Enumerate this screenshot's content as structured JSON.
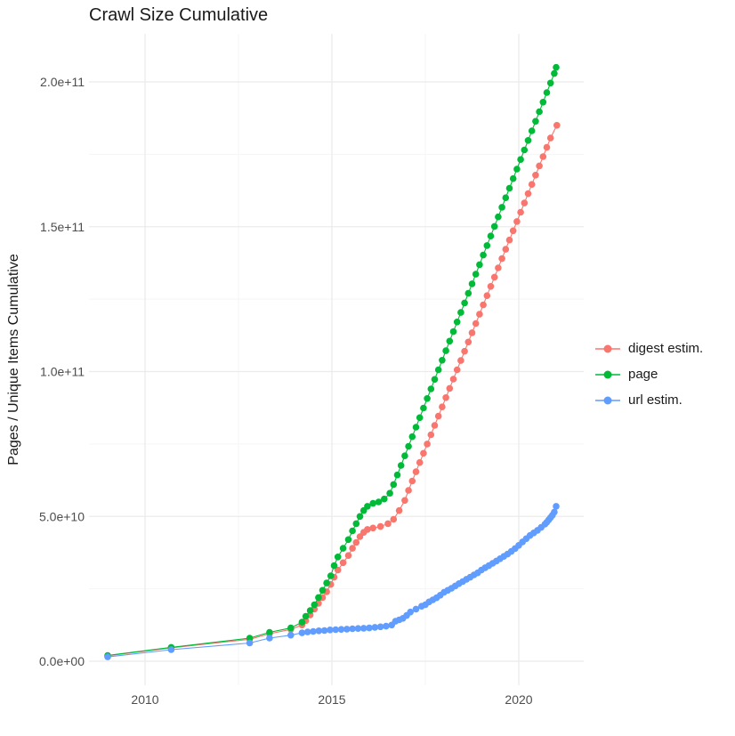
{
  "title": "Crawl Size Cumulative",
  "axes": {
    "y_title": "Pages / Unique Items Cumulative",
    "x_title": ""
  },
  "colors": {
    "background": "#FFFFFF",
    "grid_major": "#EBEBEB",
    "grid_minor": "#F5F5F5",
    "tick_text": "#4D4D4D",
    "title_text": "#1A1A1A"
  },
  "chart_data": {
    "type": "line",
    "marker": "circle",
    "title": "Crawl Size Cumulative",
    "xlabel": "",
    "ylabel": "Pages / Unique Items Cumulative",
    "xlim": [
      2008.5,
      2021.7
    ],
    "ylim": [
      0,
      215000000000
    ],
    "grid": true,
    "legend_position": "right",
    "value_unit_note": "point values are in billions (1e9) of pages/items",
    "x_major_ticks": [
      {
        "value": 2010,
        "label": "2010"
      },
      {
        "value": 2015,
        "label": "2015"
      },
      {
        "value": 2020,
        "label": "2020"
      }
    ],
    "y_major_ticks": [
      {
        "value": 0,
        "label": "0.0e+00"
      },
      {
        "value": 50,
        "label": "5.0e+10"
      },
      {
        "value": 100,
        "label": "1.0e+11"
      },
      {
        "value": 150,
        "label": "1.5e+11"
      },
      {
        "value": 200,
        "label": "2.0e+11"
      }
    ],
    "x_minor_gridlines": [
      2012.5,
      2017.5
    ],
    "y_minor_gridlines": [
      25,
      75,
      125,
      175
    ],
    "series": [
      {
        "id": "digest_estim",
        "name": "digest estim.",
        "color": "#F8766D",
        "points": [
          [
            2009.0,
            1.9
          ],
          [
            2010.7,
            4.6
          ],
          [
            2012.8,
            7.6
          ],
          [
            2013.33,
            9.5
          ],
          [
            2013.9,
            11.0
          ],
          [
            2014.2,
            12.5
          ],
          [
            2014.3,
            14.0
          ],
          [
            2014.42,
            16.0
          ],
          [
            2014.53,
            18.0
          ],
          [
            2014.64,
            20.0
          ],
          [
            2014.75,
            22.0
          ],
          [
            2014.86,
            24.0
          ],
          [
            2014.97,
            26.5
          ],
          [
            2015.06,
            29.0
          ],
          [
            2015.16,
            31.5
          ],
          [
            2015.3,
            34.0
          ],
          [
            2015.44,
            36.5
          ],
          [
            2015.55,
            39.0
          ],
          [
            2015.65,
            41.0
          ],
          [
            2015.75,
            43.0
          ],
          [
            2015.85,
            44.5
          ],
          [
            2015.95,
            45.5
          ],
          [
            2016.1,
            46.0
          ],
          [
            2016.3,
            46.5
          ],
          [
            2016.5,
            47.5
          ],
          [
            2016.65,
            49.0
          ],
          [
            2016.8,
            52.0
          ],
          [
            2016.95,
            55.5
          ],
          [
            2017.05,
            59.0
          ],
          [
            2017.15,
            62.2
          ],
          [
            2017.25,
            65.4
          ],
          [
            2017.35,
            68.6
          ],
          [
            2017.45,
            71.8
          ],
          [
            2017.55,
            75.0
          ],
          [
            2017.65,
            78.2
          ],
          [
            2017.75,
            81.4
          ],
          [
            2017.85,
            84.6
          ],
          [
            2017.95,
            87.8
          ],
          [
            2018.05,
            91.0
          ],
          [
            2018.15,
            94.2
          ],
          [
            2018.25,
            97.4
          ],
          [
            2018.35,
            100.6
          ],
          [
            2018.45,
            103.8
          ],
          [
            2018.55,
            107.0
          ],
          [
            2018.65,
            110.2
          ],
          [
            2018.75,
            113.4
          ],
          [
            2018.85,
            116.6
          ],
          [
            2018.95,
            119.8
          ],
          [
            2019.05,
            123.0
          ],
          [
            2019.15,
            126.2
          ],
          [
            2019.25,
            129.4
          ],
          [
            2019.35,
            132.6
          ],
          [
            2019.45,
            135.8
          ],
          [
            2019.55,
            139.0
          ],
          [
            2019.65,
            142.2
          ],
          [
            2019.75,
            145.4
          ],
          [
            2019.85,
            148.6
          ],
          [
            2019.95,
            151.8
          ],
          [
            2020.05,
            155.0
          ],
          [
            2020.15,
            158.2
          ],
          [
            2020.25,
            161.4
          ],
          [
            2020.35,
            164.6
          ],
          [
            2020.45,
            167.8
          ],
          [
            2020.55,
            171.0
          ],
          [
            2020.65,
            174.2
          ],
          [
            2020.75,
            177.4
          ],
          [
            2020.85,
            180.6
          ],
          [
            2021.02,
            185.0
          ]
        ]
      },
      {
        "id": "page",
        "name": "page",
        "color": "#00BA38",
        "points": [
          [
            2009.0,
            2.0
          ],
          [
            2010.7,
            4.8
          ],
          [
            2012.8,
            8.0
          ],
          [
            2013.33,
            10.0
          ],
          [
            2013.9,
            11.5
          ],
          [
            2014.2,
            13.5
          ],
          [
            2014.3,
            15.5
          ],
          [
            2014.42,
            17.5
          ],
          [
            2014.53,
            19.5
          ],
          [
            2014.64,
            22.0
          ],
          [
            2014.75,
            24.5
          ],
          [
            2014.86,
            27.0
          ],
          [
            2014.97,
            29.5
          ],
          [
            2015.06,
            33.0
          ],
          [
            2015.16,
            36.0
          ],
          [
            2015.3,
            39.0
          ],
          [
            2015.44,
            42.0
          ],
          [
            2015.55,
            45.0
          ],
          [
            2015.65,
            47.5
          ],
          [
            2015.75,
            50.0
          ],
          [
            2015.85,
            52.0
          ],
          [
            2015.95,
            53.5
          ],
          [
            2016.1,
            54.5
          ],
          [
            2016.25,
            55.0
          ],
          [
            2016.4,
            56.0
          ],
          [
            2016.55,
            58.0
          ],
          [
            2016.65,
            61.0
          ],
          [
            2016.75,
            64.3
          ],
          [
            2016.85,
            67.6
          ],
          [
            2016.95,
            70.9
          ],
          [
            2017.05,
            74.2
          ],
          [
            2017.15,
            77.5
          ],
          [
            2017.25,
            80.8
          ],
          [
            2017.35,
            84.1
          ],
          [
            2017.45,
            87.4
          ],
          [
            2017.55,
            90.7
          ],
          [
            2017.65,
            94.0
          ],
          [
            2017.75,
            97.3
          ],
          [
            2017.85,
            100.6
          ],
          [
            2017.95,
            103.9
          ],
          [
            2018.05,
            107.2
          ],
          [
            2018.15,
            110.5
          ],
          [
            2018.25,
            113.8
          ],
          [
            2018.35,
            117.1
          ],
          [
            2018.45,
            120.4
          ],
          [
            2018.55,
            123.7
          ],
          [
            2018.65,
            127.0
          ],
          [
            2018.75,
            130.3
          ],
          [
            2018.85,
            133.6
          ],
          [
            2018.95,
            136.9
          ],
          [
            2019.05,
            140.2
          ],
          [
            2019.15,
            143.5
          ],
          [
            2019.25,
            146.8
          ],
          [
            2019.35,
            150.1
          ],
          [
            2019.45,
            153.4
          ],
          [
            2019.55,
            156.7
          ],
          [
            2019.65,
            160.0
          ],
          [
            2019.75,
            163.3
          ],
          [
            2019.85,
            166.6
          ],
          [
            2019.95,
            169.9
          ],
          [
            2020.05,
            173.2
          ],
          [
            2020.15,
            176.5
          ],
          [
            2020.25,
            179.8
          ],
          [
            2020.35,
            183.1
          ],
          [
            2020.45,
            186.4
          ],
          [
            2020.55,
            189.7
          ],
          [
            2020.65,
            193.0
          ],
          [
            2020.75,
            196.3
          ],
          [
            2020.85,
            199.6
          ],
          [
            2020.95,
            202.9
          ],
          [
            2021.0,
            205.0
          ]
        ]
      },
      {
        "id": "url_estim",
        "name": "url estim.",
        "color": "#619CFF",
        "points": [
          [
            2009.0,
            1.5
          ],
          [
            2010.7,
            4.0
          ],
          [
            2012.8,
            6.3
          ],
          [
            2013.33,
            8.0
          ],
          [
            2013.9,
            9.0
          ],
          [
            2014.2,
            9.8
          ],
          [
            2014.35,
            10.1
          ],
          [
            2014.5,
            10.3
          ],
          [
            2014.65,
            10.5
          ],
          [
            2014.8,
            10.6
          ],
          [
            2014.95,
            10.8
          ],
          [
            2015.1,
            10.9
          ],
          [
            2015.25,
            11.0
          ],
          [
            2015.4,
            11.1
          ],
          [
            2015.55,
            11.2
          ],
          [
            2015.7,
            11.3
          ],
          [
            2015.85,
            11.4
          ],
          [
            2016.0,
            11.5
          ],
          [
            2016.15,
            11.7
          ],
          [
            2016.3,
            11.9
          ],
          [
            2016.45,
            12.1
          ],
          [
            2016.6,
            12.5
          ],
          [
            2016.7,
            13.8
          ],
          [
            2016.8,
            14.3
          ],
          [
            2016.9,
            14.8
          ],
          [
            2017.0,
            15.8
          ],
          [
            2017.1,
            17.0
          ],
          [
            2017.25,
            18.0
          ],
          [
            2017.4,
            19.0
          ],
          [
            2017.5,
            19.5
          ],
          [
            2017.6,
            20.5
          ],
          [
            2017.7,
            21.2
          ],
          [
            2017.8,
            21.9
          ],
          [
            2017.9,
            22.8
          ],
          [
            2018.0,
            23.8
          ],
          [
            2018.1,
            24.5
          ],
          [
            2018.2,
            25.2
          ],
          [
            2018.3,
            26.0
          ],
          [
            2018.4,
            26.8
          ],
          [
            2018.5,
            27.5
          ],
          [
            2018.6,
            28.3
          ],
          [
            2018.7,
            29.0
          ],
          [
            2018.8,
            29.8
          ],
          [
            2018.9,
            30.5
          ],
          [
            2019.0,
            31.5
          ],
          [
            2019.1,
            32.3
          ],
          [
            2019.2,
            33.0
          ],
          [
            2019.3,
            33.8
          ],
          [
            2019.4,
            34.6
          ],
          [
            2019.5,
            35.4
          ],
          [
            2019.6,
            36.2
          ],
          [
            2019.7,
            37.0
          ],
          [
            2019.8,
            37.9
          ],
          [
            2019.9,
            38.9
          ],
          [
            2020.0,
            40.0
          ],
          [
            2020.1,
            41.2
          ],
          [
            2020.2,
            42.3
          ],
          [
            2020.3,
            43.4
          ],
          [
            2020.4,
            44.3
          ],
          [
            2020.5,
            45.2
          ],
          [
            2020.6,
            46.2
          ],
          [
            2020.7,
            47.3
          ],
          [
            2020.75,
            48.0
          ],
          [
            2020.8,
            48.8
          ],
          [
            2020.85,
            49.6
          ],
          [
            2020.9,
            50.4
          ],
          [
            2020.95,
            51.5
          ],
          [
            2021.0,
            53.5
          ]
        ]
      }
    ]
  }
}
